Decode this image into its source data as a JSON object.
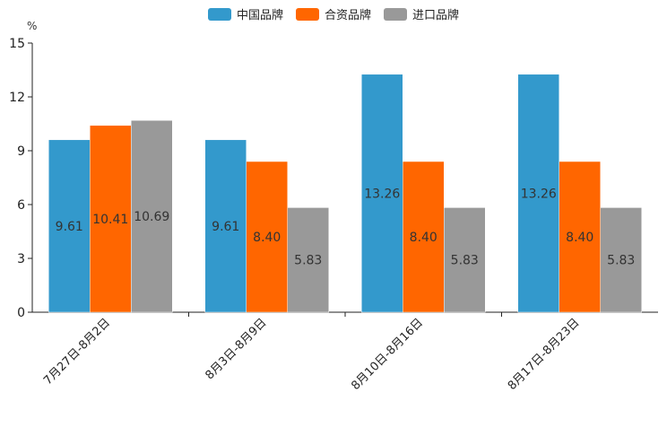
{
  "chart_data": {
    "type": "bar",
    "title": "",
    "ylabel": "%",
    "xlabel": "",
    "ylim": [
      0,
      15
    ],
    "yticks": [
      0,
      3,
      6,
      9,
      12,
      15
    ],
    "categories": [
      "7月27日-8月2日",
      "8月3日-8月9日",
      "8月10日-8月16日",
      "8月17日-8月23日"
    ],
    "series": [
      {
        "name": "中国品牌",
        "color": "#3399cc",
        "values": [
          9.61,
          9.61,
          13.26,
          13.26
        ],
        "labels": [
          "9.61",
          "9.61",
          "13.26",
          "13.26"
        ]
      },
      {
        "name": "合资品牌",
        "color": "#ff6600",
        "values": [
          10.41,
          8.4,
          8.4,
          8.4
        ],
        "labels": [
          "10.41",
          "8.40",
          "8.40",
          "8.40"
        ]
      },
      {
        "name": "进口品牌",
        "color": "#999999",
        "values": [
          10.69,
          5.83,
          5.83,
          5.83
        ],
        "labels": [
          "10.69",
          "5.83",
          "5.83",
          "5.83"
        ]
      }
    ],
    "legend_position": "top-center"
  }
}
